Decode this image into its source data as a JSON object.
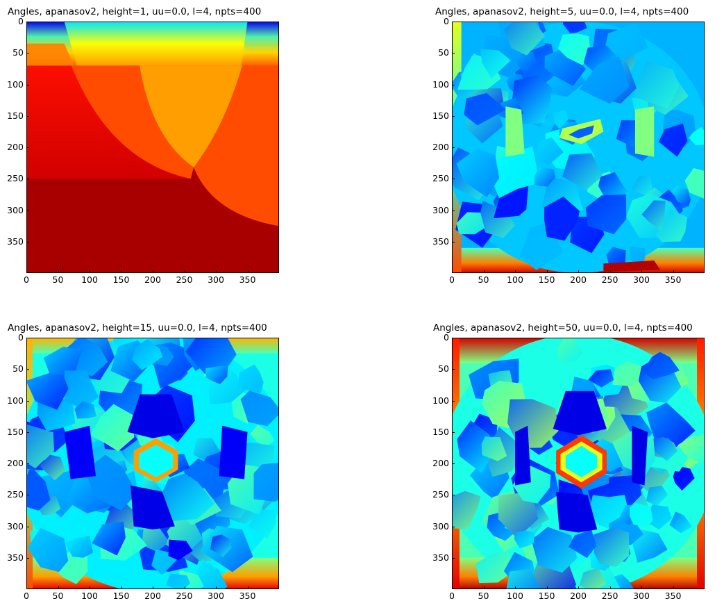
{
  "colormap": "jet",
  "colors": {
    "jet_stops": [
      "#00007f",
      "#0000ff",
      "#007fff",
      "#00ffff",
      "#7fff7f",
      "#ffff00",
      "#ff7f00",
      "#ff0000",
      "#7f0000"
    ]
  },
  "chart_data": [
    {
      "type": "heatmap",
      "id": "h1",
      "title": "Angles, apanasov2, height=1, uu=0.0, l=4, npts=400",
      "xlim": [
        0,
        400
      ],
      "ylim": [
        400,
        0
      ],
      "xticks": [
        "0",
        "50",
        "100",
        "150",
        "200",
        "250",
        "300",
        "350"
      ],
      "yticks": [
        "0",
        "50",
        "100",
        "150",
        "200",
        "250",
        "300",
        "350"
      ],
      "regions": [
        {
          "name": "top-band",
          "y_range": [
            0,
            70
          ],
          "color": "gradient blue-cyan-yellow-orange"
        },
        {
          "name": "upper-left",
          "x_range": [
            0,
            260
          ],
          "y_range": [
            40,
            250
          ],
          "value": 0.82
        },
        {
          "name": "center-wedge",
          "x_range": [
            60,
            350
          ],
          "y_range": [
            40,
            250
          ],
          "value": 0.7
        },
        {
          "name": "right-lobe",
          "x_range": [
            270,
            400
          ],
          "y_range": [
            230,
            330
          ],
          "value": 0.78
        },
        {
          "name": "bottom",
          "y_range": [
            250,
            400
          ],
          "value": 0.97
        }
      ]
    },
    {
      "type": "heatmap",
      "id": "h5",
      "title": "Angles, apanasov2, height=5, uu=0.0, l=4, npts=400",
      "xlim": [
        0,
        400
      ],
      "ylim": [
        400,
        0
      ],
      "xticks": [
        "0",
        "50",
        "100",
        "150",
        "200",
        "250",
        "300",
        "350"
      ],
      "yticks": [
        "0",
        "50",
        "100",
        "150",
        "200",
        "250",
        "300",
        "350"
      ],
      "dominant_range": [
        0.15,
        0.45
      ],
      "edge_range": [
        0.7,
        1.0
      ]
    },
    {
      "type": "heatmap",
      "id": "h15",
      "title": "Angles, apanasov2, height=15, uu=0.0, l=4, npts=400",
      "xlim": [
        0,
        400
      ],
      "ylim": [
        400,
        0
      ],
      "xticks": [
        "0",
        "50",
        "100",
        "150",
        "200",
        "250",
        "300",
        "350"
      ],
      "yticks": [
        "0",
        "50",
        "100",
        "150",
        "200",
        "250",
        "300",
        "350"
      ],
      "center": [
        205,
        190
      ],
      "dominant_range": [
        0.15,
        0.5
      ],
      "edge_range": [
        0.6,
        0.95
      ]
    },
    {
      "type": "heatmap",
      "id": "h50",
      "title": "Angles, apanasov2, height=50, uu=0.0, l=4, npts=400",
      "xlim": [
        0,
        400
      ],
      "ylim": [
        400,
        0
      ],
      "xticks": [
        "0",
        "50",
        "100",
        "150",
        "200",
        "250",
        "300",
        "350"
      ],
      "yticks": [
        "0",
        "50",
        "100",
        "150",
        "200",
        "250",
        "300",
        "350"
      ],
      "center": [
        205,
        195
      ],
      "dominant_range": [
        0.15,
        0.55
      ],
      "edge_range": [
        0.6,
        1.0
      ]
    }
  ]
}
